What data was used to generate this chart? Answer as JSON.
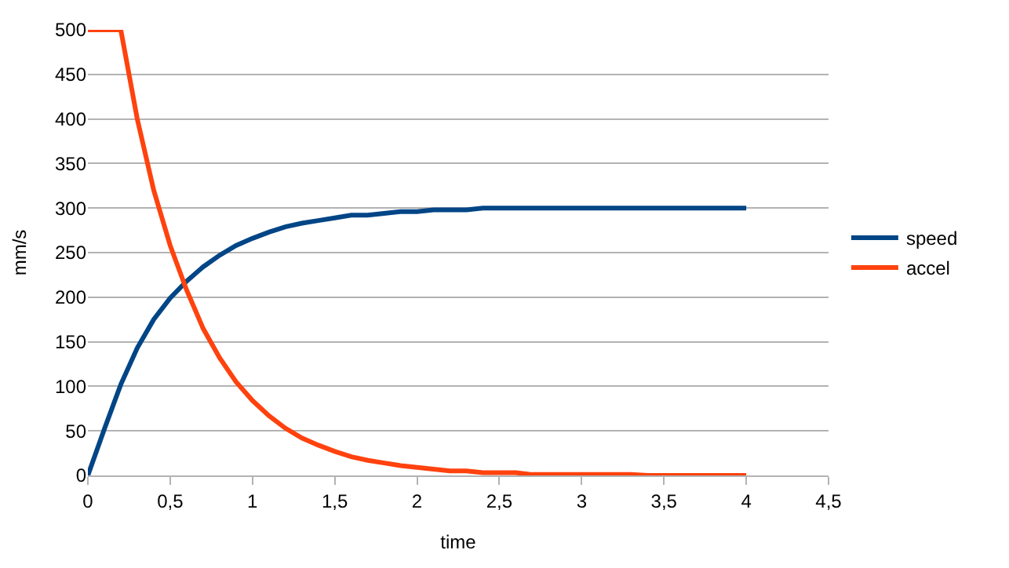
{
  "chart_data": {
    "type": "line",
    "x": [
      0,
      0.1,
      0.2,
      0.3,
      0.4,
      0.5,
      0.6,
      0.7,
      0.8,
      0.9,
      1,
      1.1,
      1.2,
      1.3,
      1.4,
      1.5,
      1.6,
      1.7,
      1.8,
      1.9,
      2,
      2.1,
      2.2,
      2.3,
      2.4,
      2.5,
      2.6,
      2.7,
      2.8,
      2.9,
      3,
      3.1,
      3.2,
      3.3,
      3.4,
      3.5,
      3.6,
      3.7,
      3.8,
      3.9,
      4
    ],
    "series": [
      {
        "name": "speed",
        "color": "#004586",
        "values": [
          0,
          52,
          102,
          143,
          175,
          199,
          218,
          234,
          247,
          258,
          266,
          273,
          279,
          283,
          286,
          289,
          292,
          292,
          294,
          296,
          296,
          298,
          298,
          298,
          300,
          300,
          300,
          300,
          300,
          300,
          300,
          300,
          300,
          300,
          300,
          300,
          300,
          300,
          300,
          300,
          300
        ]
      },
      {
        "name": "accel",
        "color": "#ff420e",
        "values": [
          500,
          500,
          500,
          400,
          320,
          258,
          208,
          165,
          132,
          105,
          84,
          67,
          53,
          42,
          34,
          27,
          21,
          17,
          14,
          11,
          9,
          7,
          5,
          5,
          3,
          3,
          3,
          1,
          1,
          1,
          1,
          1,
          1,
          1,
          0,
          0,
          0,
          0,
          0,
          0,
          0
        ]
      }
    ],
    "xlabel": "time",
    "ylabel": "mm/s",
    "xlim": [
      0,
      4.5
    ],
    "xticks": [
      0,
      {
        "value": 0.5,
        "label": "0,5"
      },
      1,
      {
        "value": 1.5,
        "label": "1,5"
      },
      2,
      {
        "value": 2.5,
        "label": "2,5"
      },
      3,
      {
        "value": 3.5,
        "label": "3,5"
      },
      4,
      {
        "value": 4.5,
        "label": "4,5"
      }
    ],
    "ylim": [
      0,
      500
    ],
    "yticks": [
      0,
      50,
      100,
      150,
      200,
      250,
      300,
      350,
      400,
      450,
      500
    ],
    "grid": "y",
    "legend": "right",
    "marker": "none",
    "line_style": "solid"
  }
}
